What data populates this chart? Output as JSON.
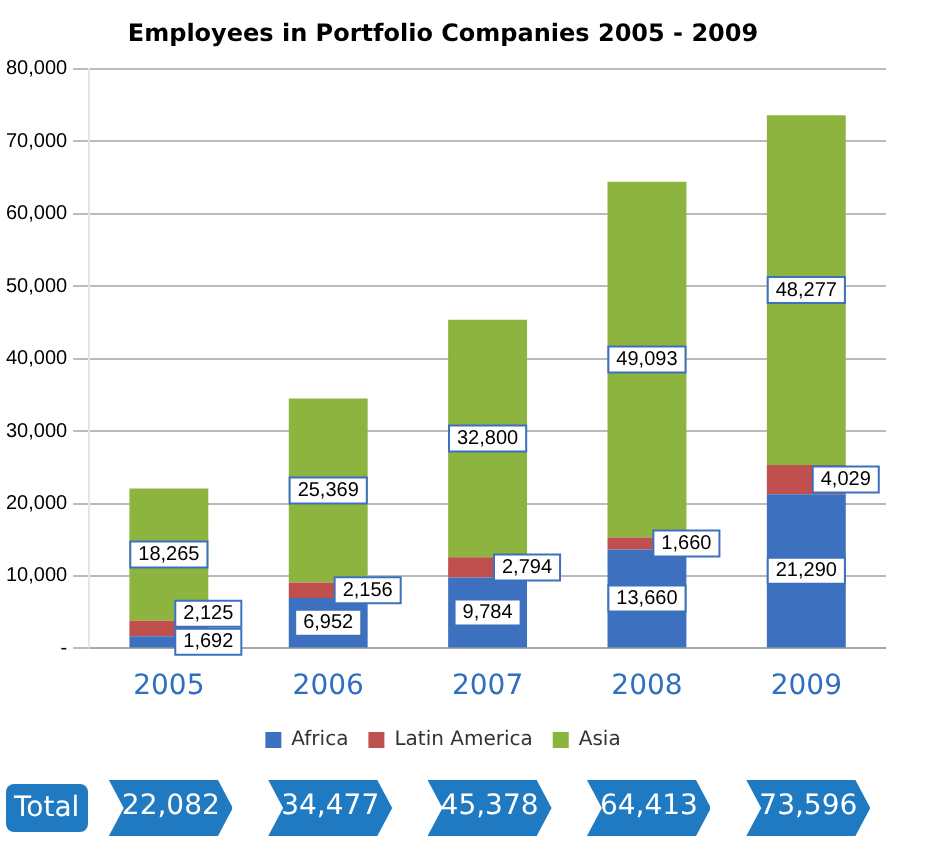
{
  "chart_data": {
    "type": "bar",
    "title": "Employees in Portfolio Companies 2005 - 2009",
    "categories": [
      "2005",
      "2006",
      "2007",
      "2008",
      "2009"
    ],
    "stacked": true,
    "series": [
      {
        "name": "Africa",
        "color": "#3d71bf",
        "values": [
          1692,
          6952,
          9784,
          13660,
          21290
        ],
        "value_labels": [
          "1,692",
          "6,952",
          "9,784",
          "13,660",
          "21,290"
        ]
      },
      {
        "name": "Latin America",
        "color": "#c0504d",
        "values": [
          2125,
          2156,
          2794,
          1660,
          4029
        ],
        "value_labels": [
          "2,125",
          "2,156",
          "2,794",
          "1,660",
          "4,029"
        ]
      },
      {
        "name": "Asia",
        "color": "#8db43e",
        "values": [
          18265,
          25369,
          32800,
          49093,
          48277
        ],
        "value_labels": [
          "18,265",
          "25,369",
          "32,800",
          "49,093",
          "48,277"
        ]
      }
    ],
    "ylim": [
      0,
      80000
    ],
    "yticks": [
      {
        "value": 0,
        "label": "-"
      },
      {
        "value": 10000,
        "label": "10,000"
      },
      {
        "value": 20000,
        "label": "20,000"
      },
      {
        "value": 30000,
        "label": "30,000"
      },
      {
        "value": 40000,
        "label": "40,000"
      },
      {
        "value": 50000,
        "label": "50,000"
      },
      {
        "value": 60000,
        "label": "60,000"
      },
      {
        "value": 70000,
        "label": "70,000"
      },
      {
        "value": 80000,
        "label": "80,000"
      }
    ],
    "grid": "y",
    "legend": "bottom",
    "annotations": [
      "Total",
      "22,082",
      "34,477",
      "45,378",
      "64,413",
      "73,596"
    ]
  }
}
